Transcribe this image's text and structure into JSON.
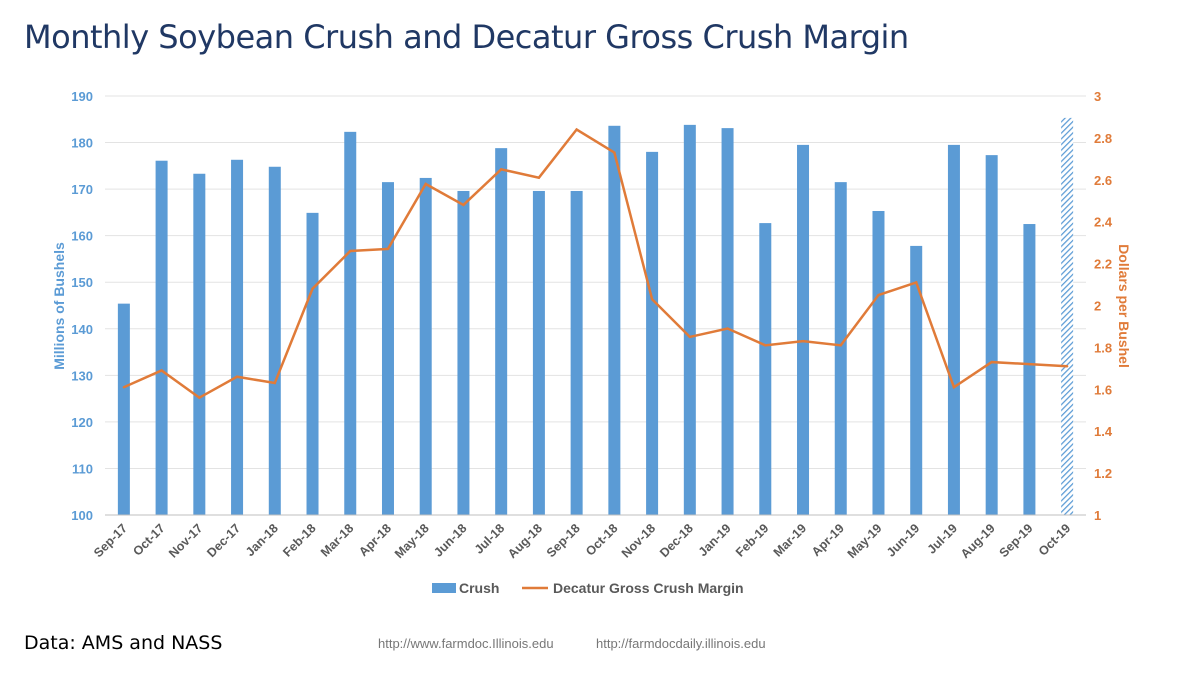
{
  "title": "Monthly Soybean Crush and Decatur Gross Crush Margin",
  "footer": {
    "source": "Data: AMS and NASS",
    "url1": "http://www.farmdoc.Illinois.edu",
    "url2": "http://farmdocdaily.illinois.edu"
  },
  "colors": {
    "bar": "#5b9bd5",
    "line": "#e07b39",
    "left_axis": "#5b9bd5",
    "right_axis": "#e07b39"
  },
  "chart_data": {
    "type": "bar+line",
    "title": "Monthly Soybean Crush and Decatur Gross Crush Margin",
    "categories": [
      "Sep-17",
      "Oct-17",
      "Nov-17",
      "Dec-17",
      "Jan-18",
      "Feb-18",
      "Mar-18",
      "Apr-18",
      "May-18",
      "Jun-18",
      "Jul-18",
      "Aug-18",
      "Sep-18",
      "Oct-18",
      "Nov-18",
      "Dec-18",
      "Jan-19",
      "Feb-19",
      "Mar-19",
      "Apr-19",
      "May-19",
      "Jun-19",
      "Jul-19",
      "Aug-19",
      "Sep-19",
      "Oct-19"
    ],
    "series": [
      {
        "name": "Crush",
        "type": "bar",
        "axis": "left",
        "values": [
          145.4,
          176.1,
          173.3,
          176.3,
          174.8,
          164.9,
          182.3,
          171.5,
          172.4,
          169.6,
          178.8,
          169.6,
          169.6,
          183.6,
          178.0,
          183.8,
          183.1,
          162.7,
          179.5,
          171.5,
          165.3,
          157.8,
          179.5,
          177.3,
          162.5,
          185.3
        ],
        "hatched_last": true
      },
      {
        "name": "Decatur Gross Crush Margin",
        "type": "line",
        "axis": "right",
        "values": [
          1.61,
          1.69,
          1.56,
          1.66,
          1.63,
          2.08,
          2.26,
          2.27,
          2.58,
          2.48,
          2.65,
          2.61,
          2.84,
          2.73,
          2.03,
          1.85,
          1.89,
          1.81,
          1.83,
          1.81,
          2.05,
          2.11,
          1.61,
          1.73,
          1.72,
          1.71
        ]
      }
    ],
    "ylabel": "Millions of Bushels",
    "y2label": "Dollars per Bushel",
    "ylim": [
      100,
      190
    ],
    "yticks": [
      "100",
      "110",
      "120",
      "130",
      "140",
      "150",
      "160",
      "170",
      "180",
      "190"
    ],
    "y2lim": [
      1,
      3
    ],
    "y2ticks": [
      "1",
      "1.2",
      "1.4",
      "1.6",
      "1.8",
      "2",
      "2.2",
      "2.4",
      "2.6",
      "2.8",
      "3"
    ],
    "grid": true,
    "legend": "bottom"
  }
}
